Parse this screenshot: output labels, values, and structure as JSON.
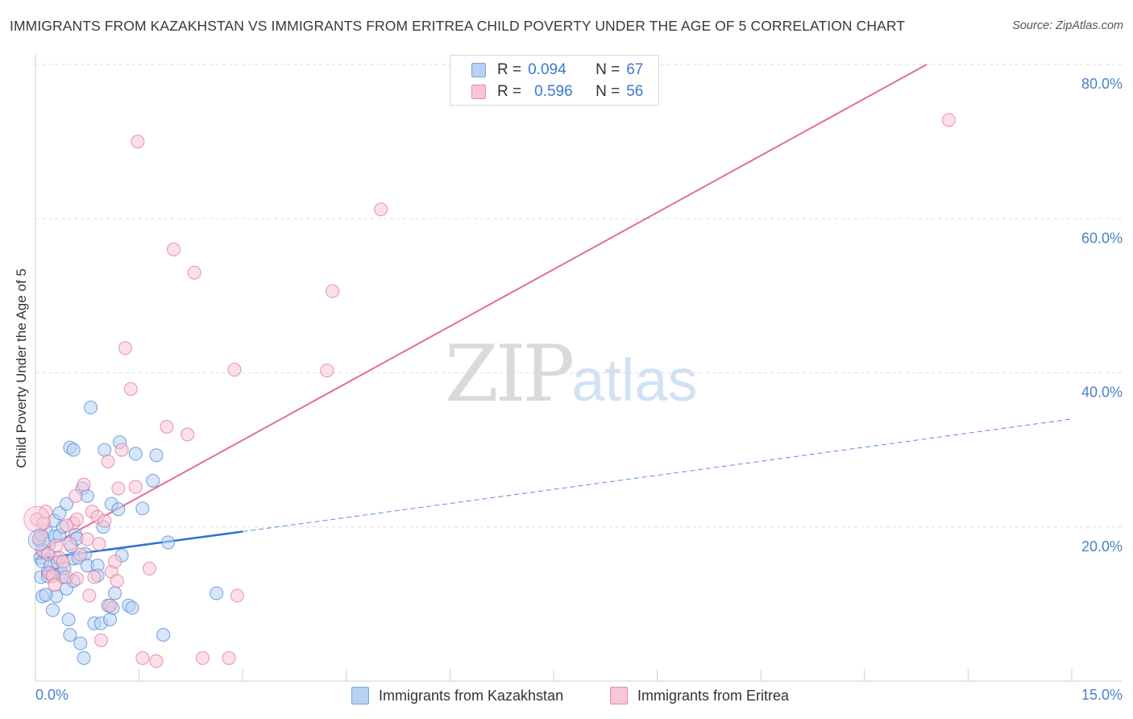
{
  "title": "IMMIGRANTS FROM KAZAKHSTAN VS IMMIGRANTS FROM ERITREA CHILD POVERTY UNDER THE AGE OF 5 CORRELATION CHART",
  "source": "Source: ZipAtlas.com",
  "watermark": {
    "zip": "ZIP",
    "atlas": "atlas"
  },
  "legend": {
    "r_label": "R =",
    "n_label": "N =",
    "series": [
      {
        "name": "Immigrants from Kazakhstan",
        "r": "0.094",
        "n": "67",
        "color": "#b7d1f2"
      },
      {
        "name": "Immigrants from Eritrea",
        "r": "0.596",
        "n": "56",
        "color": "#f8c6d6"
      }
    ]
  },
  "chart_data": {
    "type": "scatter",
    "title": "IMMIGRANTS FROM KAZAKHSTAN VS IMMIGRANTS FROM ERITREA CHILD POVERTY UNDER THE AGE OF 5 CORRELATION CHART",
    "xlabel": "",
    "ylabel": "Child Poverty Under the Age of 5",
    "xlim": [
      0,
      15
    ],
    "ylim": [
      0,
      80
    ],
    "x_tick_labels": [
      "0.0%",
      "15.0%"
    ],
    "y_ticks": [
      20,
      40,
      60,
      80
    ],
    "y_tick_labels": [
      "20.0%",
      "40.0%",
      "60.0%",
      "80.0%"
    ],
    "series": [
      {
        "name": "Immigrants from Kazakhstan",
        "color": "#4a86d6",
        "fill": "#b7d1f2",
        "points": [
          [
            0.05,
            18.3
          ],
          [
            0.07,
            16.0
          ],
          [
            0.08,
            13.5
          ],
          [
            0.1,
            11.0
          ],
          [
            0.1,
            15.5
          ],
          [
            0.12,
            16.8
          ],
          [
            0.15,
            19.5
          ],
          [
            0.18,
            14.2
          ],
          [
            0.18,
            13.6
          ],
          [
            0.2,
            17.8
          ],
          [
            0.22,
            15.0
          ],
          [
            0.25,
            9.2
          ],
          [
            0.25,
            13.8
          ],
          [
            0.27,
            20.8
          ],
          [
            0.28,
            18.8
          ],
          [
            0.3,
            16.0
          ],
          [
            0.32,
            15.4
          ],
          [
            0.35,
            21.8
          ],
          [
            0.35,
            18.9
          ],
          [
            0.38,
            14.0
          ],
          [
            0.4,
            13.5
          ],
          [
            0.4,
            20.0
          ],
          [
            0.42,
            14.6
          ],
          [
            0.45,
            23.0
          ],
          [
            0.45,
            12.0
          ],
          [
            0.48,
            8.0
          ],
          [
            0.5,
            6.0
          ],
          [
            0.5,
            30.3
          ],
          [
            0.52,
            17.5
          ],
          [
            0.55,
            15.9
          ],
          [
            0.55,
            30.0
          ],
          [
            0.58,
            19.0
          ],
          [
            0.6,
            18.5
          ],
          [
            0.62,
            16.0
          ],
          [
            0.65,
            4.9
          ],
          [
            0.68,
            25.0
          ],
          [
            0.7,
            3.0
          ],
          [
            0.72,
            16.5
          ],
          [
            0.75,
            24.0
          ],
          [
            0.75,
            15.0
          ],
          [
            0.8,
            35.5
          ],
          [
            0.85,
            7.5
          ],
          [
            0.9,
            15.0
          ],
          [
            0.95,
            7.5
          ],
          [
            0.98,
            20.0
          ],
          [
            1.0,
            30.0
          ],
          [
            1.05,
            9.8
          ],
          [
            1.08,
            8.0
          ],
          [
            1.1,
            23.0
          ],
          [
            1.12,
            9.5
          ],
          [
            1.15,
            11.4
          ],
          [
            1.2,
            22.3
          ],
          [
            1.22,
            31.0
          ],
          [
            1.25,
            16.3
          ],
          [
            1.35,
            9.8
          ],
          [
            1.4,
            9.5
          ],
          [
            1.45,
            29.5
          ],
          [
            1.55,
            22.4
          ],
          [
            1.7,
            26.0
          ],
          [
            1.75,
            29.3
          ],
          [
            1.85,
            6.0
          ],
          [
            1.92,
            18.0
          ],
          [
            2.62,
            11.4
          ],
          [
            0.3,
            11.0
          ],
          [
            0.15,
            11.2
          ],
          [
            0.55,
            13.0
          ],
          [
            0.9,
            13.7
          ]
        ],
        "trend": {
          "x1": 0,
          "y1": 15.8,
          "x2": 3.0,
          "y2": 19.4,
          "dashed_to_x": 15.0,
          "dashed_to_y": 34.0
        }
      },
      {
        "name": "Immigrants from Eritrea",
        "color": "#e36d96",
        "fill": "#f8c6d6",
        "points": [
          [
            0.02,
            21.0
          ],
          [
            0.05,
            18.5
          ],
          [
            0.08,
            19.0
          ],
          [
            0.1,
            17.0
          ],
          [
            0.12,
            20.5
          ],
          [
            0.15,
            22.0
          ],
          [
            0.18,
            16.5
          ],
          [
            0.2,
            14.0
          ],
          [
            0.25,
            13.6
          ],
          [
            0.28,
            12.5
          ],
          [
            0.3,
            17.6
          ],
          [
            0.35,
            16.0
          ],
          [
            0.4,
            15.5
          ],
          [
            0.45,
            13.5
          ],
          [
            0.5,
            17.8
          ],
          [
            0.55,
            20.5
          ],
          [
            0.58,
            24.0
          ],
          [
            0.6,
            21.0
          ],
          [
            0.65,
            16.4
          ],
          [
            0.7,
            25.5
          ],
          [
            0.75,
            18.4
          ],
          [
            0.78,
            11.1
          ],
          [
            0.82,
            22.0
          ],
          [
            0.85,
            13.5
          ],
          [
            0.9,
            21.3
          ],
          [
            0.92,
            17.8
          ],
          [
            0.95,
            5.3
          ],
          [
            1.0,
            20.8
          ],
          [
            1.05,
            28.5
          ],
          [
            1.08,
            9.8
          ],
          [
            1.1,
            14.2
          ],
          [
            1.15,
            15.5
          ],
          [
            1.2,
            25.0
          ],
          [
            1.25,
            30.0
          ],
          [
            1.3,
            43.2
          ],
          [
            1.38,
            37.9
          ],
          [
            1.45,
            25.2
          ],
          [
            1.48,
            70.0
          ],
          [
            1.55,
            3.0
          ],
          [
            1.65,
            14.6
          ],
          [
            1.75,
            2.6
          ],
          [
            1.9,
            33.0
          ],
          [
            2.0,
            56.0
          ],
          [
            2.2,
            32.0
          ],
          [
            2.3,
            53.0
          ],
          [
            2.42,
            3.0
          ],
          [
            2.8,
            3.0
          ],
          [
            2.88,
            40.4
          ],
          [
            2.92,
            11.1
          ],
          [
            4.22,
            40.3
          ],
          [
            4.3,
            50.6
          ],
          [
            5.0,
            61.2
          ],
          [
            13.22,
            72.8
          ],
          [
            0.45,
            20.2
          ],
          [
            0.6,
            13.3
          ],
          [
            1.18,
            13.0
          ]
        ],
        "trend": {
          "x1": 0,
          "y1": 16.5,
          "x2": 12.9,
          "y2": 80.0
        }
      }
    ]
  }
}
